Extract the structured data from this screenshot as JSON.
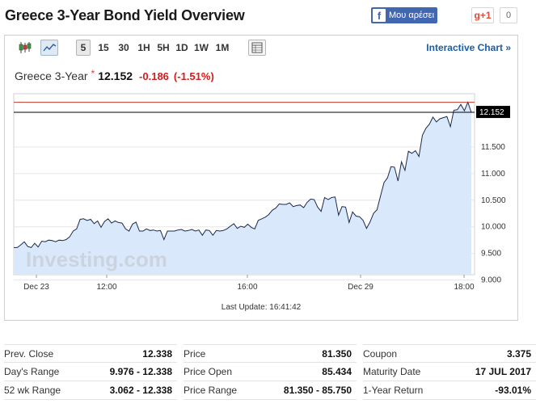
{
  "header": {
    "title": "Greece 3-Year Bond Yield Overview",
    "fb_like_label": "Μου αρέσει",
    "gplus_label": "g+1",
    "gplus_count": "0"
  },
  "toolbar": {
    "timeframes": [
      "5",
      "15",
      "30",
      "1H",
      "5H",
      "1D",
      "1W",
      "1M"
    ],
    "active_timeframe": "5",
    "interactive_chart_label": "Interactive Chart »"
  },
  "quote": {
    "name": "Greece 3-Year",
    "star": "*",
    "price": "12.152",
    "change": "-0.186",
    "change_pct": "(-1.51%)"
  },
  "chart_data": {
    "type": "area",
    "series": [
      {
        "values": [
          9.61,
          9.61,
          9.66,
          9.72,
          9.63,
          9.61,
          9.69,
          9.62,
          9.73,
          9.72,
          9.75,
          9.74,
          9.72,
          9.75,
          9.74,
          9.76,
          9.81,
          9.92,
          9.96,
          10.14,
          10.15,
          10.12,
          10.14,
          10.06,
          10.11,
          9.99,
          10.1,
          10.15,
          10.07,
          10.11,
          10.08,
          10.07,
          9.96,
          9.92,
          10.05,
          10.09,
          9.92,
          9.92,
          9.96,
          9.93,
          9.94,
          9.92,
          9.93,
          9.76,
          9.92,
          9.92,
          9.92,
          9.94,
          9.95,
          9.92,
          9.93,
          9.95,
          9.92,
          9.94,
          9.84,
          9.94,
          9.93,
          9.84,
          9.93,
          9.92,
          9.93,
          9.96,
          10.01,
          10.06,
          9.97,
          10.01,
          9.99,
          10.05,
          9.99,
          9.96,
          10.12,
          10.15,
          10.18,
          10.23,
          10.31,
          10.35,
          10.43,
          10.42,
          10.42,
          10.45,
          10.38,
          10.4,
          10.41,
          10.36,
          10.46,
          10.52,
          10.51,
          10.37,
          10.29,
          10.55,
          10.51,
          10.55,
          10.56,
          10.22,
          10.38,
          10.37,
          10.08,
          10.28,
          10.2,
          10.19,
          10.12,
          9.97,
          10.09,
          10.25,
          10.32,
          10.58,
          10.83,
          10.92,
          11.13,
          11.12,
          10.86,
          11.22,
          11.06,
          11.42,
          11.38,
          11.43,
          11.32,
          11.72,
          11.85,
          11.93,
          12.06,
          11.97,
          12.03,
          12.05,
          12.07,
          11.88,
          12.19,
          12.2,
          12.3,
          12.18,
          12.34,
          12.15
        ],
        "last_value": "12.152"
      }
    ],
    "reference_line": 12.338,
    "ylim": [
      9.1,
      12.5
    ],
    "y_ticks": [
      "9.000",
      "9.500",
      "10.000",
      "10.500",
      "11.000",
      "11.500"
    ],
    "x_ticks": [
      "Dec 23",
      "12:00",
      "16:00",
      "Dec 29",
      "18:00"
    ],
    "watermark": "Investing.com",
    "last_update": "Last Update: 16:41:42",
    "colors": {
      "line": "#1b2b4a",
      "fill": "#d9e8fb",
      "reference": "#c0392b",
      "price_line": "#000000",
      "grid": "#e6e6e6"
    }
  },
  "stats": {
    "col1": [
      {
        "label": "Prev. Close",
        "value": "12.338"
      },
      {
        "label": "Day's Range",
        "value": "9.976 - 12.338"
      },
      {
        "label": "52 wk Range",
        "value": "3.062 - 12.338"
      }
    ],
    "col2": [
      {
        "label": "Price",
        "value": "81.350"
      },
      {
        "label": "Price Open",
        "value": "85.434"
      },
      {
        "label": "Price Range",
        "value": "81.350 - 85.750"
      }
    ],
    "col3": [
      {
        "label": "Coupon",
        "value": "3.375"
      },
      {
        "label": "Maturity Date",
        "value": "17 JUL 2017"
      },
      {
        "label": "1-Year Return",
        "value": "-93.01%"
      }
    ]
  },
  "icons": [
    "candlestick-icon",
    "line-chart-icon",
    "table-icon",
    "facebook-icon"
  ]
}
